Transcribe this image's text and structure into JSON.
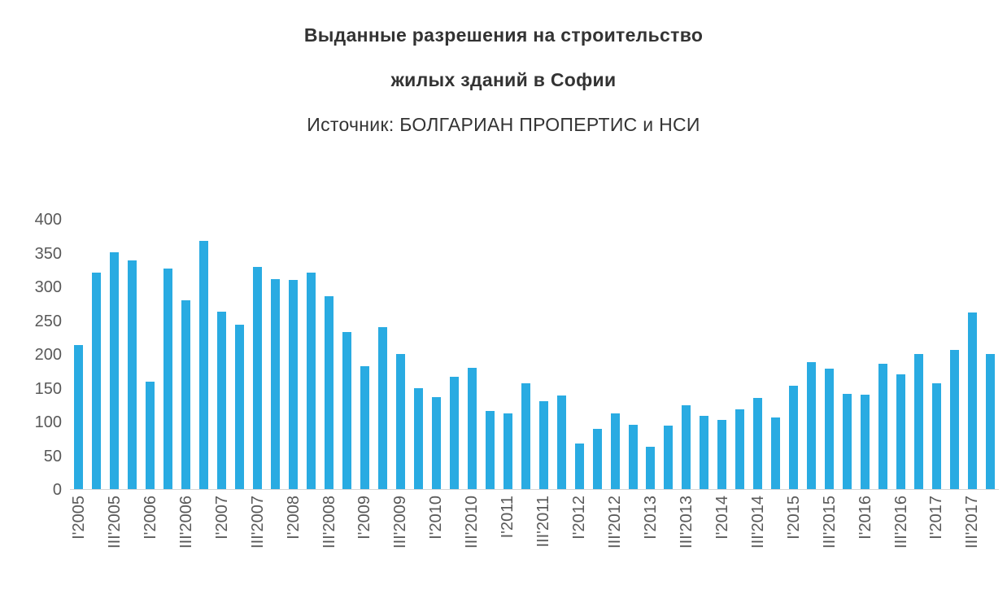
{
  "title": {
    "line1": "Выданные разрешения на строительство",
    "line2": "жилых зданий в Софии",
    "source": "Источник: БОЛГАРИАН ПРОПЕРТИС  и НСИ"
  },
  "chart_data": {
    "type": "bar",
    "title": "Выданные разрешения на строительство жилых зданий в Софии",
    "subtitle": "Источник: БОЛГАРИАН ПРОПЕРТИС и НСИ",
    "xlabel": "",
    "ylabel": "",
    "ylim": [
      0,
      400
    ],
    "y_ticks": [
      0,
      50,
      100,
      150,
      200,
      250,
      300,
      350,
      400
    ],
    "x_tick_every": 2,
    "grid": false,
    "legend": false,
    "bar_color": "#29ABE2",
    "axis_label_color": "#595959",
    "categories": [
      "I'2005",
      "II'2005",
      "III'2005",
      "IV'2005",
      "I'2006",
      "II'2006",
      "III'2006",
      "IV'2006",
      "I'2007",
      "II'2007",
      "III'2007",
      "IV'2007",
      "I'2008",
      "II'2008",
      "III'2008",
      "IV'2008",
      "I'2009",
      "II'2009",
      "III'2009",
      "IV'2009",
      "I'2010",
      "II'2010",
      "III'2010",
      "IV'2010",
      "I'2011",
      "II'2011",
      "III'2011",
      "IV'2011",
      "I'2012",
      "II'2012",
      "III'2012",
      "IV'2012",
      "I'2013",
      "II'2013",
      "III'2013",
      "IV'2013",
      "I'2014",
      "II'2014",
      "III'2014",
      "IV'2014",
      "I'2015",
      "II'2015",
      "III'2015",
      "IV'2015",
      "I'2016",
      "II'2016",
      "III'2016",
      "IV'2016",
      "I'2017",
      "II'2017",
      "III'2017",
      "IV'2017"
    ],
    "values": [
      214,
      322,
      352,
      340,
      160,
      328,
      280,
      368,
      263,
      244,
      330,
      312,
      311,
      321,
      287,
      233,
      183,
      241,
      201,
      150,
      136,
      167,
      180,
      116,
      112,
      157,
      130,
      139,
      68,
      90,
      112,
      95,
      63,
      94,
      124,
      109,
      103,
      118,
      135,
      106,
      154,
      188,
      179,
      142,
      140,
      186,
      170,
      201,
      157,
      207,
      262,
      201
    ]
  }
}
